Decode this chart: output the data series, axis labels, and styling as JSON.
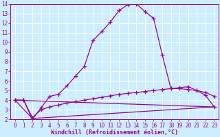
{
  "xlabel": "Windchill (Refroidissement éolien,°C)",
  "bg_color": "#cceeff",
  "grid_color": "#ffffff",
  "line_color": "#990099",
  "xlim": [
    -0.5,
    23.5
  ],
  "ylim": [
    2,
    14
  ],
  "xticks": [
    0,
    1,
    2,
    3,
    4,
    5,
    6,
    7,
    8,
    9,
    10,
    11,
    12,
    13,
    14,
    15,
    16,
    17,
    18,
    19,
    20,
    21,
    22,
    23
  ],
  "yticks": [
    2,
    3,
    4,
    5,
    6,
    7,
    8,
    9,
    10,
    11,
    12,
    13,
    14
  ],
  "curve1_x": [
    0,
    1,
    2,
    3,
    4,
    5,
    6,
    7,
    8,
    9,
    10,
    11,
    12,
    13,
    14,
    15,
    16,
    17,
    18,
    19,
    20,
    21,
    22,
    23
  ],
  "curve1_y": [
    4.0,
    4.0,
    2.0,
    3.2,
    4.4,
    4.6,
    5.5,
    6.5,
    7.5,
    10.2,
    11.1,
    12.1,
    13.3,
    13.9,
    14.0,
    13.2,
    12.5,
    8.7,
    5.2,
    5.2,
    5.1,
    5.0,
    4.8,
    4.4
  ],
  "curve2_x": [
    0,
    1,
    2,
    3,
    4,
    5,
    6,
    7,
    8,
    9,
    10,
    11,
    12,
    13,
    14,
    15,
    16,
    17,
    18,
    19,
    20,
    21,
    22,
    23
  ],
  "curve2_y": [
    4.0,
    4.0,
    2.2,
    3.0,
    3.3,
    3.5,
    3.7,
    3.85,
    4.0,
    4.15,
    4.3,
    4.45,
    4.6,
    4.7,
    4.8,
    4.9,
    5.0,
    5.1,
    5.2,
    5.3,
    5.4,
    5.0,
    4.5,
    3.3
  ],
  "line1_x": [
    0,
    23
  ],
  "line1_y": [
    4.0,
    3.3
  ],
  "line2_x": [
    0,
    2,
    23
  ],
  "line2_y": [
    4.0,
    2.1,
    3.3
  ],
  "marker": "+",
  "markersize": 4,
  "linewidth": 0.9,
  "tick_fontsize": 5.5,
  "xlabel_fontsize": 6.0
}
